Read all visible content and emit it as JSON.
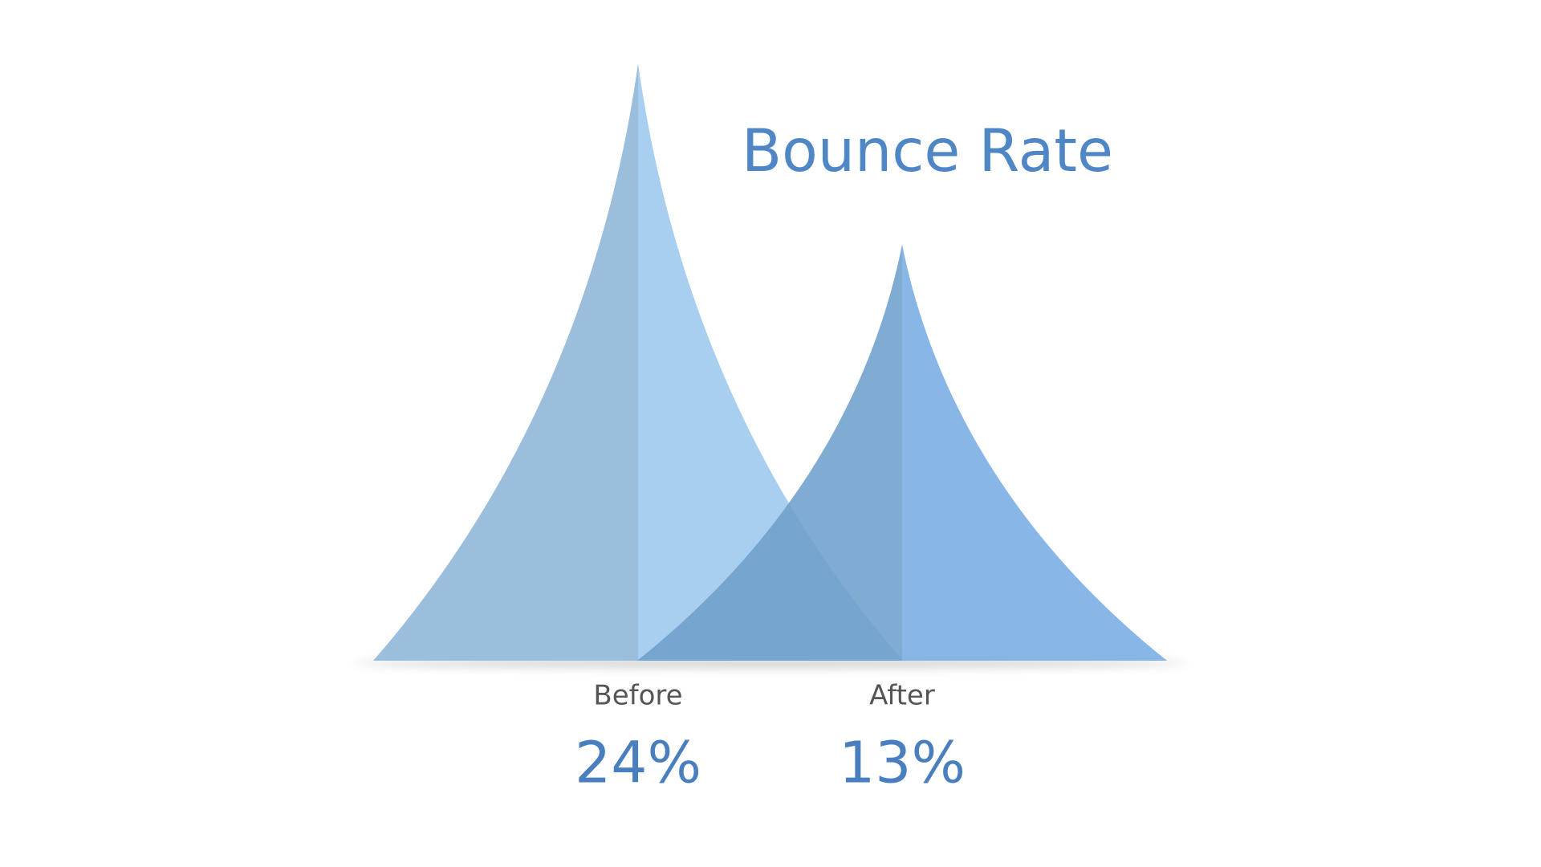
{
  "chart_data": {
    "type": "peak",
    "title": "Bounce Rate",
    "categories": [
      "Before",
      "After"
    ],
    "values": [
      24,
      13
    ],
    "value_labels": [
      "24%",
      "13%"
    ],
    "colors": [
      "#9bbedd",
      "#6e9fcc"
    ],
    "highlight_colors": [
      "#a8cfef",
      "#78ace2"
    ]
  }
}
